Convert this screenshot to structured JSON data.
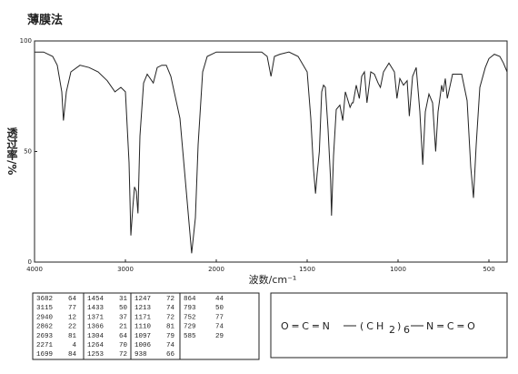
{
  "chart_data": {
    "type": "line",
    "title": "薄膜法",
    "x_label": "波数/cm⁻¹",
    "y_label": "透过率/%",
    "xlim": [
      4000,
      400
    ],
    "x_scale_change": 2000,
    "xticks": [
      4000,
      3000,
      2000,
      1500,
      1000,
      500
    ],
    "ylim": [
      0,
      100
    ],
    "yticks": [
      0,
      50,
      100
    ],
    "color": "#222222",
    "x": [
      4000,
      3900,
      3800,
      3750,
      3700,
      3682,
      3650,
      3600,
      3500,
      3400,
      3300,
      3200,
      3115,
      3050,
      3000,
      2960,
      2940,
      2920,
      2900,
      2880,
      2862,
      2840,
      2800,
      2760,
      2693,
      2650,
      2600,
      2550,
      2500,
      2400,
      2330,
      2271,
      2230,
      2200,
      2150,
      2100,
      2000,
      1900,
      1800,
      1750,
      1720,
      1699,
      1680,
      1650,
      1600,
      1550,
      1500,
      1480,
      1465,
      1454,
      1445,
      1433,
      1420,
      1410,
      1400,
      1385,
      1371,
      1366,
      1355,
      1340,
      1320,
      1304,
      1290,
      1275,
      1264,
      1253,
      1247,
      1230,
      1213,
      1200,
      1185,
      1171,
      1150,
      1130,
      1110,
      1097,
      1080,
      1050,
      1020,
      1006,
      990,
      970,
      950,
      938,
      920,
      900,
      880,
      864,
      850,
      830,
      810,
      793,
      780,
      760,
      752,
      740,
      729,
      700,
      650,
      620,
      600,
      585,
      570,
      550,
      520,
      500,
      470,
      440,
      420,
      400
    ],
    "values": [
      95,
      95,
      93,
      89,
      77,
      64,
      77,
      86,
      89,
      88,
      86,
      82,
      77,
      79,
      77,
      45,
      12,
      24,
      34,
      32,
      22,
      57,
      81,
      85,
      81,
      88,
      89,
      89,
      84,
      65,
      32,
      4,
      20,
      53,
      86,
      93,
      95,
      95,
      95,
      95,
      93,
      84,
      93,
      94,
      95,
      93,
      86,
      65,
      42,
      31,
      40,
      50,
      77,
      80,
      79,
      60,
      37,
      21,
      48,
      69,
      71,
      64,
      77,
      73,
      70,
      72,
      72,
      80,
      74,
      84,
      86,
      72,
      86,
      85,
      81,
      79,
      86,
      90,
      86,
      74,
      83,
      80,
      82,
      66,
      84,
      88,
      68,
      44,
      68,
      76,
      72,
      50,
      68,
      80,
      77,
      83,
      74,
      85,
      85,
      73,
      43,
      29,
      53,
      79,
      88,
      92,
      94,
      93,
      90,
      86
    ]
  },
  "peak_table": {
    "columns": [
      [
        [
          3682,
          64
        ],
        [
          3115,
          77
        ],
        [
          2940,
          12
        ],
        [
          2862,
          22
        ],
        [
          2693,
          81
        ],
        [
          2271,
          4
        ],
        [
          1699,
          84
        ]
      ],
      [
        [
          1454,
          31
        ],
        [
          1433,
          50
        ],
        [
          1371,
          37
        ],
        [
          1366,
          21
        ],
        [
          1304,
          64
        ],
        [
          1264,
          70
        ],
        [
          1253,
          72
        ]
      ],
      [
        [
          1247,
          72
        ],
        [
          1213,
          74
        ],
        [
          1171,
          72
        ],
        [
          1110,
          81
        ],
        [
          1097,
          79
        ],
        [
          1006,
          74
        ],
        [
          938,
          66
        ]
      ],
      [
        [
          864,
          44
        ],
        [
          793,
          50
        ],
        [
          752,
          77
        ],
        [
          729,
          74
        ],
        [
          585,
          29
        ]
      ]
    ]
  },
  "structure": {
    "left": "O═C═N",
    "open": "(CH",
    "sub1": "2",
    "close": ")",
    "sub2": "6",
    "right": "N═C═O"
  }
}
